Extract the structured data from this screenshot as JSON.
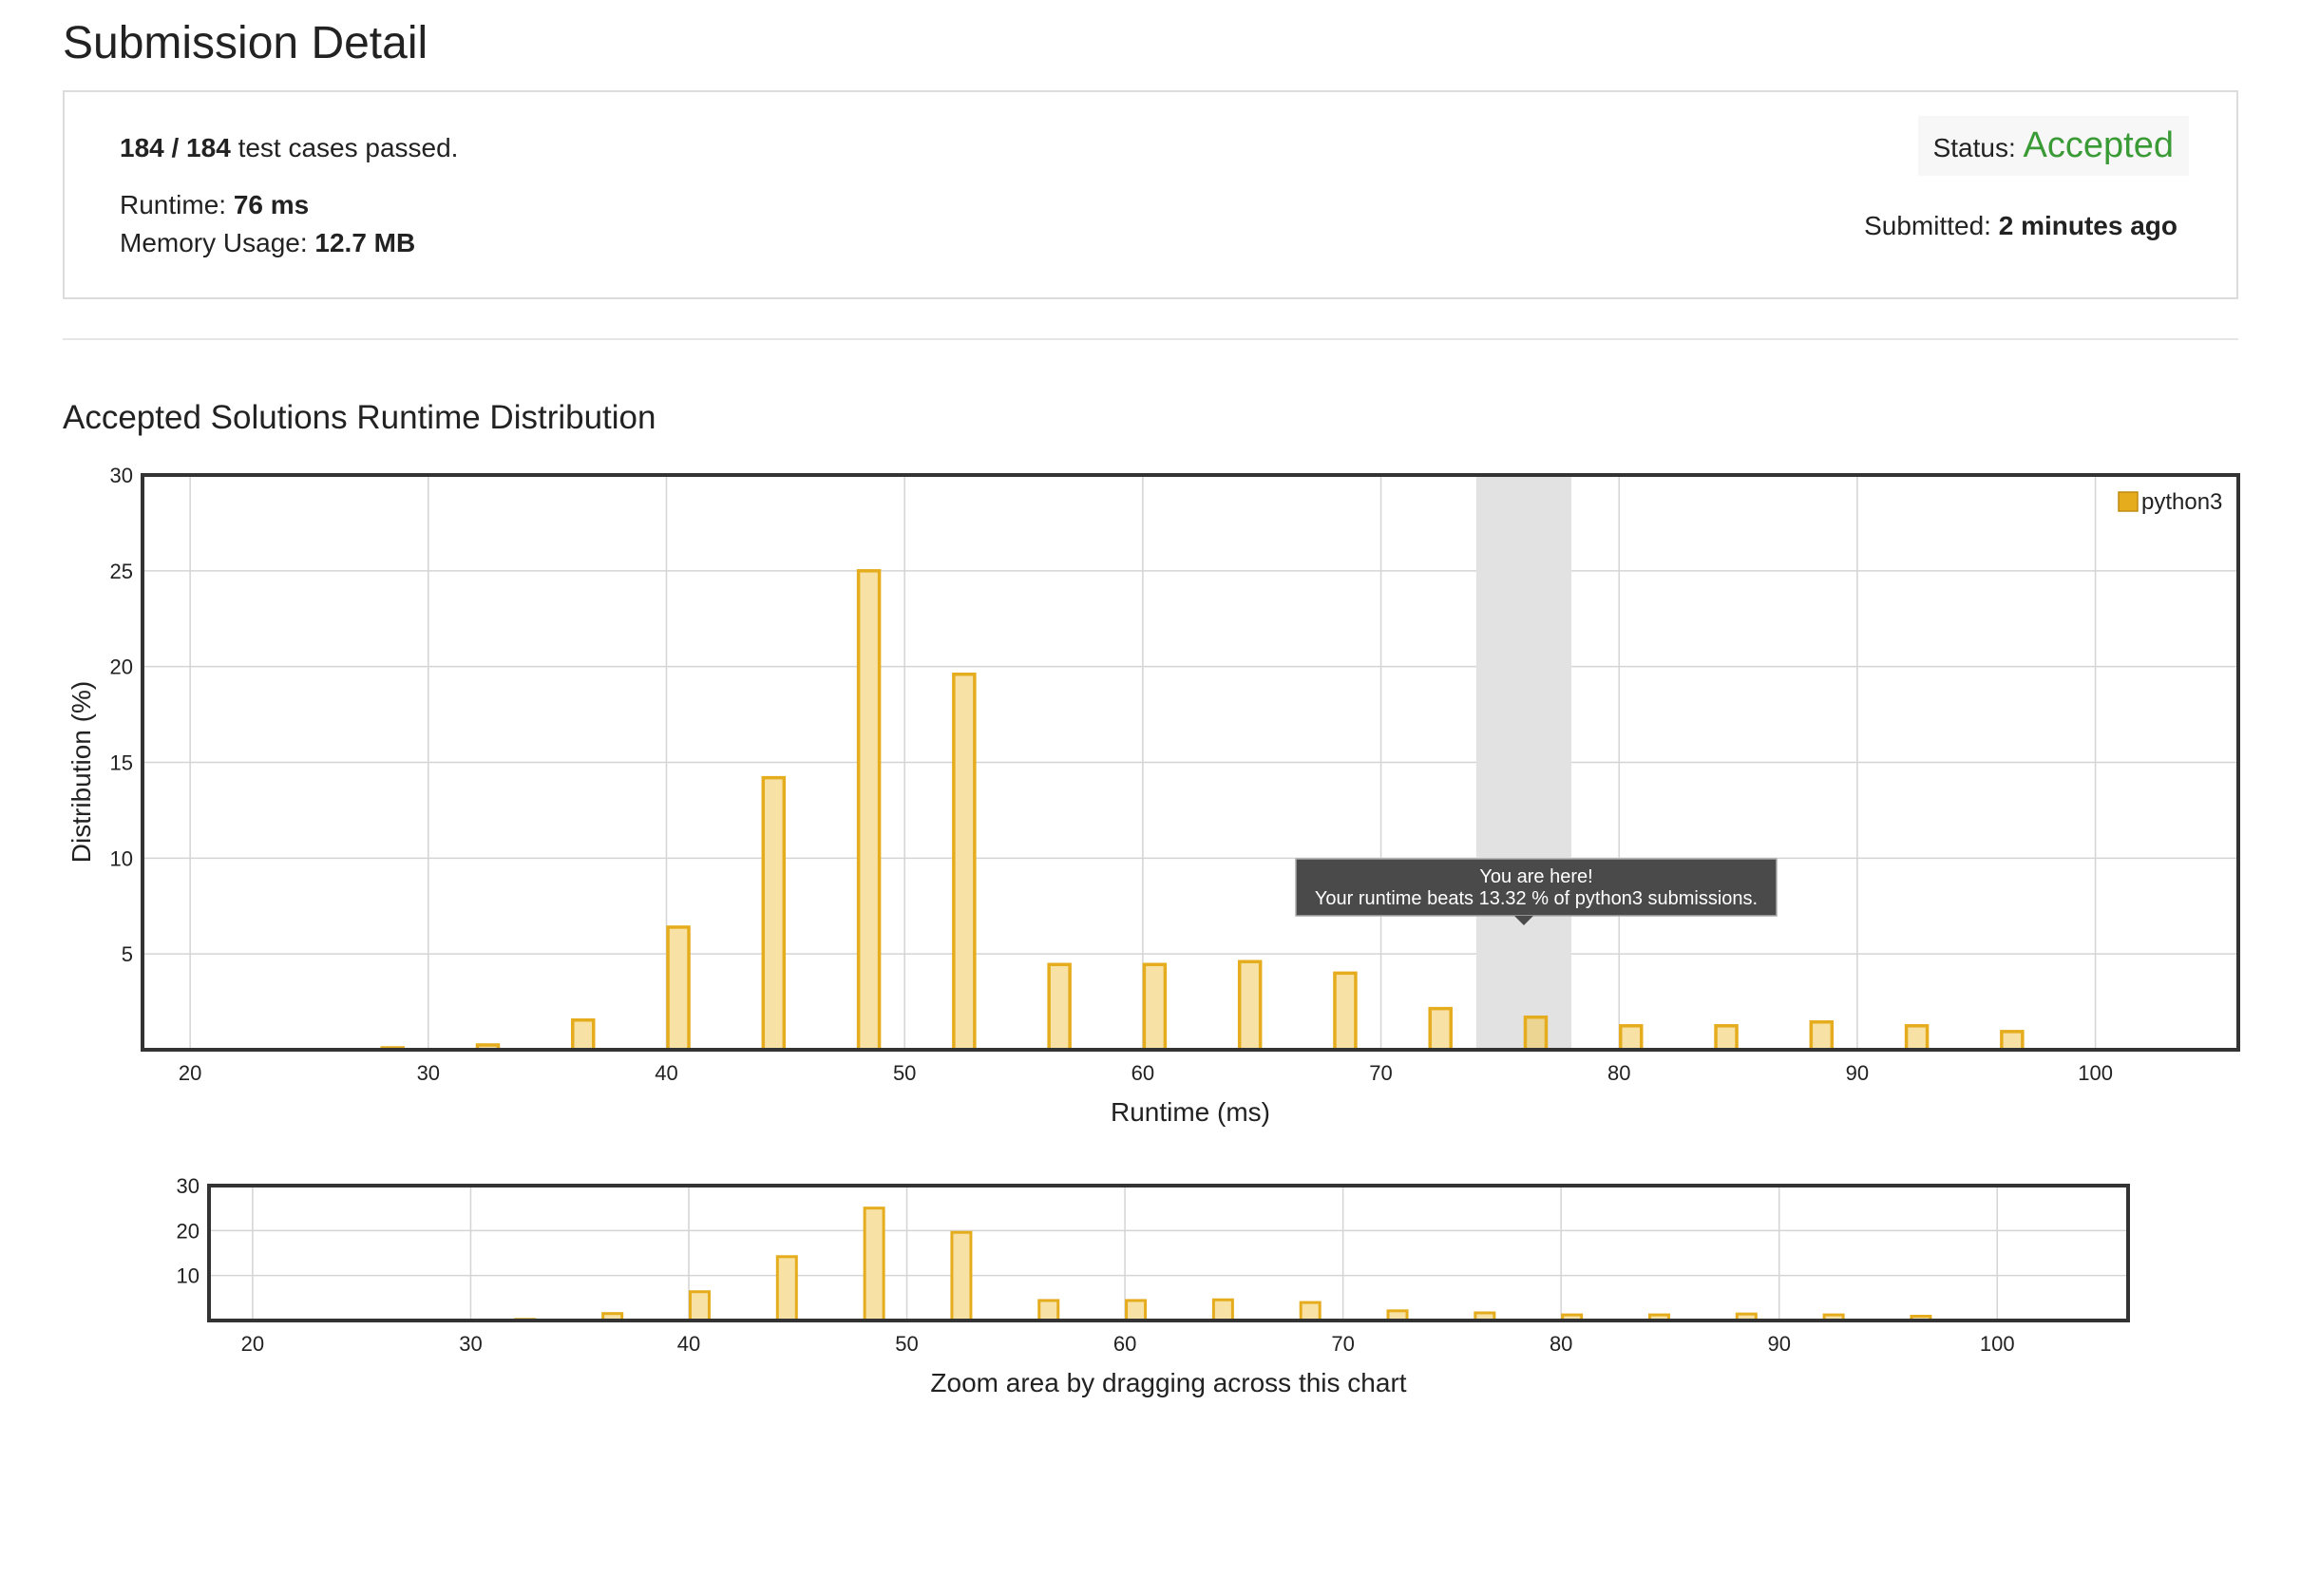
{
  "page": {
    "title": "Submission Detail"
  },
  "summary": {
    "cases_passed": "184 / 184",
    "cases_text": "test cases passed.",
    "runtime_label": "Runtime:",
    "runtime_value": "76 ms",
    "memory_label": "Memory Usage:",
    "memory_value": "12.7 MB",
    "status_label": "Status:",
    "status_value": "Accepted",
    "submitted_label": "Submitted:",
    "submitted_value": "2 minutes ago"
  },
  "colors": {
    "accent_green": "#3a9b36",
    "bar_fill": "#f7e1a4",
    "bar_stroke": "#e5ad1e",
    "highlight": "#e2e2e2"
  },
  "section": {
    "title": "Accepted Solutions Runtime Distribution"
  },
  "tooltip": {
    "line1": "You are here!",
    "line2": "Your runtime beats 13.32 % of python3 submissions."
  },
  "overview": {
    "hint": "Zoom area by dragging across this chart"
  },
  "chart_data": [
    {
      "type": "bar",
      "title": "",
      "xlabel": "Runtime (ms)",
      "ylabel": "Distribution (%)",
      "xlim": [
        18,
        106
      ],
      "ylim": [
        0,
        30
      ],
      "x_ticks": [
        20,
        30,
        40,
        50,
        60,
        70,
        80,
        90,
        100
      ],
      "y_ticks": [
        5,
        10,
        15,
        20,
        25,
        30
      ],
      "grid": true,
      "legend": "top-right",
      "highlight_range": [
        74,
        78
      ],
      "series": [
        {
          "name": "python3",
          "x": [
            28.5,
            32.5,
            36.5,
            40.5,
            44.5,
            48.5,
            52.5,
            56.5,
            60.5,
            64.5,
            68.5,
            72.5,
            76.5,
            80.5,
            84.5,
            88.5,
            92.5,
            96.5
          ],
          "values": [
            0.1,
            0.25,
            1.55,
            6.4,
            14.2,
            25.0,
            19.6,
            4.45,
            4.45,
            4.6,
            4.0,
            2.15,
            1.7,
            1.25,
            1.25,
            1.45,
            1.25,
            0.95
          ]
        }
      ]
    },
    {
      "type": "bar",
      "title": "",
      "xlabel": "",
      "ylabel": "",
      "xlim": [
        18,
        106
      ],
      "ylim": [
        0,
        30
      ],
      "x_ticks": [
        20,
        30,
        40,
        50,
        60,
        70,
        80,
        90,
        100
      ],
      "y_ticks": [
        10,
        20,
        30
      ],
      "grid": true,
      "series": [
        {
          "x": [
            28.5,
            32.5,
            36.5,
            40.5,
            44.5,
            48.5,
            52.5,
            56.5,
            60.5,
            64.5,
            68.5,
            72.5,
            76.5,
            80.5,
            84.5,
            88.5,
            92.5,
            96.5
          ],
          "values": [
            0.1,
            0.25,
            1.55,
            6.4,
            14.2,
            25.0,
            19.6,
            4.45,
            4.45,
            4.6,
            4.0,
            2.15,
            1.7,
            1.25,
            1.25,
            1.45,
            1.25,
            0.95
          ]
        }
      ]
    }
  ]
}
